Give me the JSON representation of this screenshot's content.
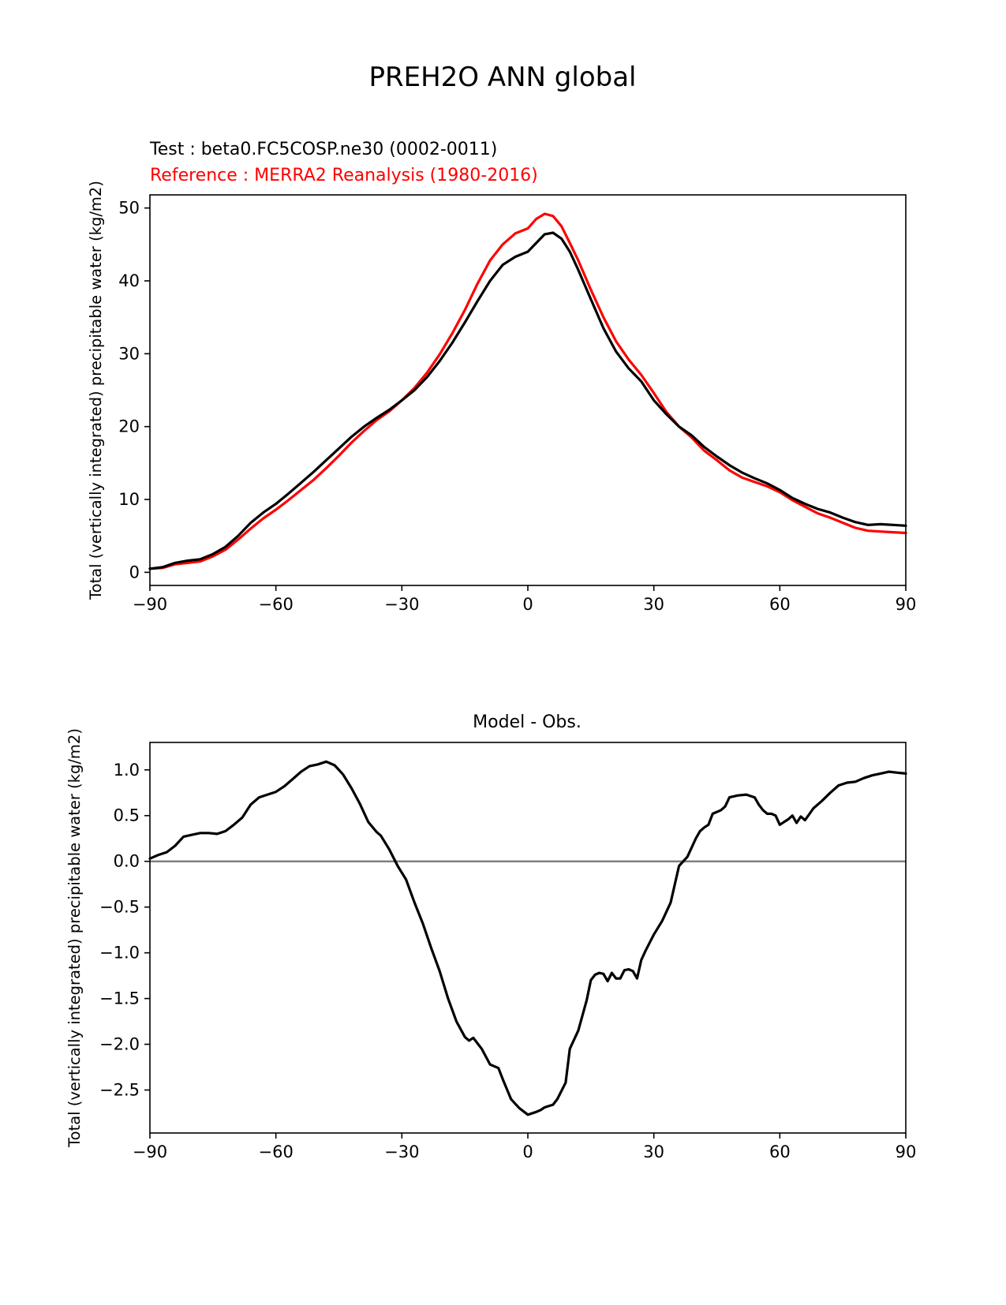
{
  "figure": {
    "title": "PREH2O ANN global"
  },
  "colors": {
    "test": "#000000",
    "reference": "#ff0000",
    "zero_line": "#808080"
  },
  "chart_data": [
    {
      "type": "line",
      "subtitle_test": "Test : beta0.FC5COSP.ne30 (0002-0011)",
      "subtitle_reference": "Reference : MERRA2 Reanalysis (1980-2016)",
      "xlabel": "",
      "ylabel": "Total (vertically integrated) precipitable water (kg/m2)",
      "xlim": [
        -90,
        90
      ],
      "ylim": [
        -1.8,
        51.8
      ],
      "xticks": [
        -90,
        -60,
        -30,
        0,
        30,
        60,
        90
      ],
      "xtick_labels": [
        "−90",
        "−60",
        "−30",
        "0",
        "30",
        "60",
        "90"
      ],
      "yticks": [
        0,
        10,
        20,
        30,
        40,
        50
      ],
      "ytick_labels": [
        "0",
        "10",
        "20",
        "30",
        "40",
        "50"
      ],
      "grid": false,
      "series": [
        {
          "name": "Test : beta0.FC5COSP.ne30 (0002-0011)",
          "color": "#000000",
          "x": [
            -90,
            -87,
            -84,
            -81,
            -78,
            -75,
            -72,
            -69,
            -66,
            -63,
            -60,
            -57,
            -54,
            -51,
            -48,
            -45,
            -42,
            -39,
            -36,
            -33,
            -30,
            -27,
            -24,
            -21,
            -18,
            -15,
            -12,
            -9,
            -6,
            -3,
            0,
            2,
            4,
            6,
            8,
            10,
            12,
            15,
            18,
            21,
            24,
            27,
            30,
            33,
            36,
            39,
            42,
            45,
            48,
            51,
            54,
            57,
            60,
            63,
            66,
            69,
            72,
            75,
            78,
            81,
            84,
            87,
            90
          ],
          "y": [
            0.5,
            0.7,
            1.3,
            1.6,
            1.8,
            2.5,
            3.5,
            5.0,
            6.8,
            8.2,
            9.4,
            10.8,
            12.3,
            13.8,
            15.4,
            17.0,
            18.6,
            20.0,
            21.2,
            22.3,
            23.6,
            25.0,
            26.8,
            29.0,
            31.5,
            34.3,
            37.2,
            40.0,
            42.2,
            43.3,
            44.0,
            45.2,
            46.4,
            46.6,
            45.8,
            44.0,
            41.5,
            37.5,
            33.5,
            30.3,
            28.0,
            26.2,
            23.6,
            21.7,
            20.0,
            18.8,
            17.2,
            15.9,
            14.7,
            13.7,
            12.9,
            12.2,
            11.3,
            10.2,
            9.4,
            8.7,
            8.2,
            7.5,
            6.9,
            6.5,
            6.6,
            6.5,
            6.4
          ]
        },
        {
          "name": "Reference : MERRA2 Reanalysis (1980-2016)",
          "color": "#ff0000",
          "x": [
            -90,
            -87,
            -84,
            -81,
            -78,
            -75,
            -72,
            -69,
            -66,
            -63,
            -60,
            -57,
            -54,
            -51,
            -48,
            -45,
            -42,
            -39,
            -36,
            -33,
            -30,
            -27,
            -24,
            -21,
            -18,
            -15,
            -12,
            -9,
            -6,
            -3,
            0,
            2,
            4,
            6,
            8,
            10,
            12,
            15,
            18,
            21,
            24,
            27,
            30,
            33,
            36,
            39,
            42,
            45,
            48,
            51,
            54,
            57,
            60,
            63,
            66,
            69,
            72,
            75,
            78,
            81,
            84,
            87,
            90
          ],
          "y": [
            0.5,
            0.6,
            1.1,
            1.3,
            1.5,
            2.2,
            3.1,
            4.5,
            6.0,
            7.4,
            8.6,
            9.9,
            11.3,
            12.7,
            14.3,
            16.0,
            17.8,
            19.4,
            20.9,
            22.1,
            23.6,
            25.3,
            27.4,
            29.9,
            32.8,
            36.0,
            39.6,
            42.8,
            45.0,
            46.5,
            47.2,
            48.5,
            49.2,
            48.9,
            47.5,
            45.2,
            42.8,
            38.8,
            35.0,
            31.7,
            29.2,
            27.1,
            24.6,
            22.0,
            20.0,
            18.5,
            16.7,
            15.4,
            14.0,
            13.0,
            12.4,
            11.8,
            11.0,
            9.9,
            9.0,
            8.1,
            7.5,
            6.8,
            6.1,
            5.7,
            5.6,
            5.5,
            5.4
          ]
        }
      ]
    },
    {
      "type": "line",
      "title": "Model - Obs.",
      "xlabel": "",
      "ylabel": "Total (vertically integrated) precipitable water (kg/m2)",
      "xlim": [
        -90,
        90
      ],
      "ylim": [
        -2.97,
        1.3
      ],
      "xticks": [
        -90,
        -60,
        -30,
        0,
        30,
        60,
        90
      ],
      "xtick_labels": [
        "−90",
        "−60",
        "−30",
        "0",
        "30",
        "60",
        "90"
      ],
      "yticks": [
        1.0,
        0.5,
        0.0,
        -0.5,
        -1.0,
        -1.5,
        -2.0,
        -2.5
      ],
      "ytick_labels": [
        "1.0",
        "0.5",
        "0.0",
        "−0.5",
        "−1.0",
        "−1.5",
        "−2.0",
        "−2.5"
      ],
      "zero_line": true,
      "grid": false,
      "series": [
        {
          "color": "#000000",
          "x": [
            -90,
            -88,
            -86,
            -84,
            -82,
            -80,
            -78,
            -76,
            -74,
            -72,
            -70,
            -68,
            -66,
            -64,
            -62,
            -60,
            -58,
            -56,
            -54,
            -52,
            -50,
            -48,
            -46,
            -44,
            -42,
            -40,
            -38,
            -36,
            -35,
            -33,
            -31,
            -29,
            -27,
            -25,
            -23,
            -21,
            -19,
            -17,
            -15,
            -14,
            -13,
            -11,
            -9,
            -7,
            -6,
            -4,
            -3,
            -2,
            0,
            2,
            3,
            4,
            6,
            7,
            9,
            10,
            12,
            14,
            15,
            16,
            17,
            18,
            19,
            20,
            21,
            22,
            23,
            24,
            25,
            26,
            27,
            28,
            30,
            32,
            34,
            35,
            36,
            38,
            40,
            41,
            42,
            43,
            44,
            46,
            47,
            48,
            50,
            52,
            54,
            55,
            56,
            57,
            58,
            59,
            60,
            62,
            63,
            64,
            65,
            66,
            68,
            70,
            72,
            74,
            76,
            78,
            80,
            82,
            84,
            86,
            88,
            90
          ],
          "y": [
            0.03,
            0.07,
            0.1,
            0.17,
            0.27,
            0.29,
            0.31,
            0.31,
            0.3,
            0.33,
            0.4,
            0.48,
            0.62,
            0.7,
            0.73,
            0.76,
            0.82,
            0.9,
            0.98,
            1.04,
            1.06,
            1.09,
            1.05,
            0.95,
            0.8,
            0.63,
            0.43,
            0.32,
            0.28,
            0.13,
            -0.05,
            -0.2,
            -0.45,
            -0.68,
            -0.95,
            -1.2,
            -1.5,
            -1.75,
            -1.92,
            -1.96,
            -1.93,
            -2.05,
            -2.22,
            -2.26,
            -2.38,
            -2.6,
            -2.65,
            -2.7,
            -2.77,
            -2.74,
            -2.72,
            -2.69,
            -2.66,
            -2.6,
            -2.42,
            -2.05,
            -1.85,
            -1.52,
            -1.3,
            -1.24,
            -1.22,
            -1.23,
            -1.31,
            -1.22,
            -1.28,
            -1.28,
            -1.19,
            -1.18,
            -1.2,
            -1.28,
            -1.08,
            -0.98,
            -0.8,
            -0.65,
            -0.45,
            -0.25,
            -0.05,
            0.05,
            0.25,
            0.33,
            0.37,
            0.4,
            0.52,
            0.56,
            0.6,
            0.7,
            0.72,
            0.73,
            0.7,
            0.62,
            0.56,
            0.52,
            0.52,
            0.5,
            0.4,
            0.46,
            0.5,
            0.42,
            0.49,
            0.45,
            0.58,
            0.66,
            0.75,
            0.83,
            0.86,
            0.87,
            0.91,
            0.94,
            0.96,
            0.98,
            0.97,
            0.96
          ]
        }
      ]
    }
  ]
}
